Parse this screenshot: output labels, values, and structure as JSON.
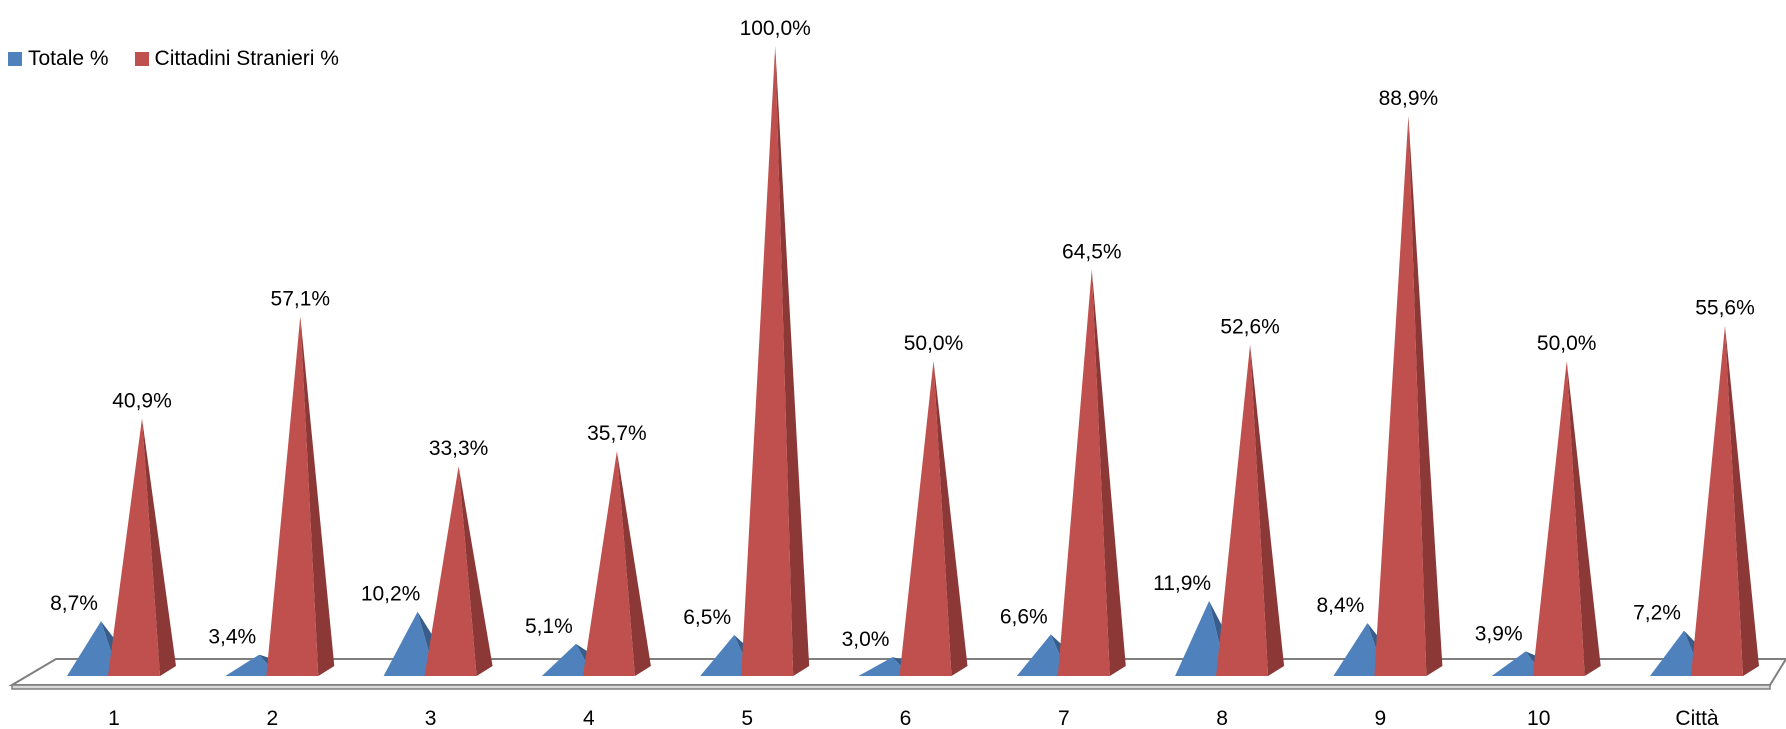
{
  "chart_data": {
    "type": "bar",
    "bar_shape": "pyramid",
    "three_d": true,
    "categories": [
      "1",
      "2",
      "3",
      "4",
      "5",
      "6",
      "7",
      "8",
      "9",
      "10",
      "Città"
    ],
    "series": [
      {
        "name": "Totale %",
        "values": [
          8.7,
          3.4,
          10.2,
          5.1,
          6.5,
          3.0,
          6.6,
          11.9,
          8.4,
          3.9,
          7.2
        ],
        "labels": [
          "8,7%",
          "3,4%",
          "10,2%",
          "5,1%",
          "6,5%",
          "3,0%",
          "6,6%",
          "11,9%",
          "8,4%",
          "3,9%",
          "7,2%"
        ],
        "color": "#4F81BD",
        "shade": "#385D8A"
      },
      {
        "name": "Cittadini Stranieri %",
        "values": [
          40.9,
          57.1,
          33.3,
          35.7,
          100.0,
          50.0,
          64.5,
          52.6,
          88.9,
          50.0,
          55.6
        ],
        "labels": [
          "40,9%",
          "57,1%",
          "33,3%",
          "35,7%",
          "100,0%",
          "50,0%",
          "64,5%",
          "52,6%",
          "88,9%",
          "50,0%",
          "55,6%"
        ],
        "color": "#C0504D",
        "shade": "#8C3836"
      }
    ],
    "ylim": [
      0,
      100
    ],
    "legend_position": "top-left",
    "grid": false
  }
}
